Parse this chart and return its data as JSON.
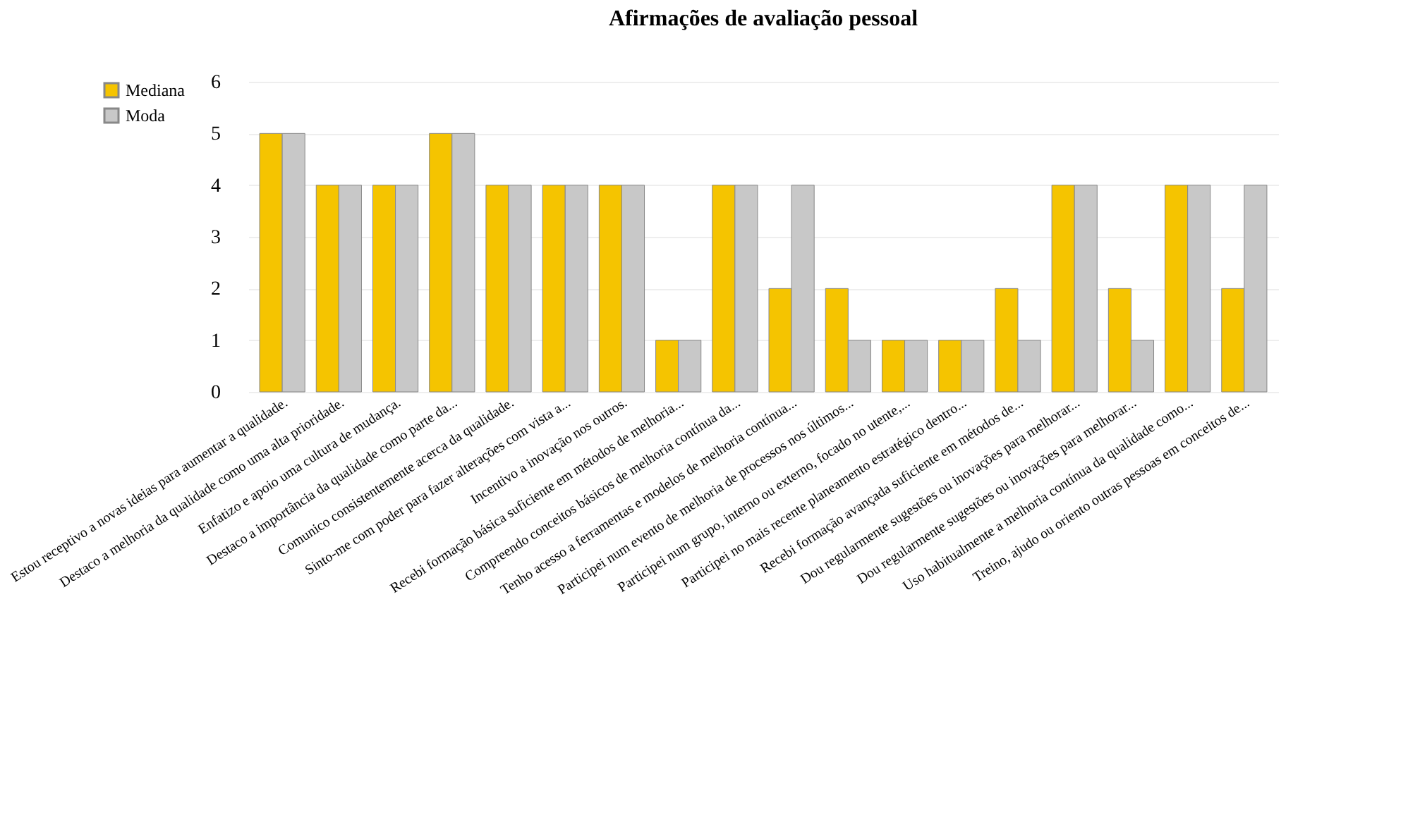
{
  "chart_data": {
    "type": "bar",
    "title": "Afirmações de avaliação pessoal",
    "categories": [
      "Estou receptivo a novas ideias para aumentar a qualidade.",
      "Destaco a melhoria da qualidade como uma alta prioridade.",
      "Enfatizo e apoio uma cultura de mudança.",
      "Destaco a importância da qualidade como parte da...",
      "Comunico consistentemente acerca da qualidade.",
      "Sinto-me com poder para fazer alterações com vista a...",
      "Incentivo a inovação nos outros.",
      "Recebi formação básica suficiente em métodos de melhoria...",
      "Compreendo conceitos básicos de melhoria contínua da...",
      "Tenho acesso a ferramentas e modelos de melhoria contínua...",
      "Participei num evento de melhoria de processos nos últimos...",
      "Participei num grupo, interno ou externo, focado no utente,...",
      "Participei no mais recente planeamento estratégico dentro...",
      "Recebi formação avançada suficiente em métodos de...",
      "Dou regularmente sugestões ou inovações para melhorar...",
      "Dou regularmente sugestões ou inovações para melhorar...",
      "Uso habitualmente a melhoria contínua da qualidade como...",
      "Treino, ajudo ou oriento outras pessoas em conceitos de..."
    ],
    "series": [
      {
        "name": "Mediana",
        "color": "#f5c400",
        "values": [
          5,
          4,
          4,
          5,
          4,
          4,
          4,
          1,
          4,
          2,
          2,
          1,
          1,
          2,
          4,
          2,
          4,
          2
        ]
      },
      {
        "name": "Moda",
        "color": "#c8c8c8",
        "values": [
          5,
          4,
          4,
          5,
          4,
          4,
          4,
          1,
          4,
          4,
          1,
          1,
          1,
          1,
          4,
          1,
          4,
          4
        ]
      }
    ],
    "ylim": [
      0,
      6
    ],
    "yticks": [
      0,
      1,
      2,
      3,
      4,
      5,
      6
    ],
    "grid": "y",
    "legend": "left"
  }
}
